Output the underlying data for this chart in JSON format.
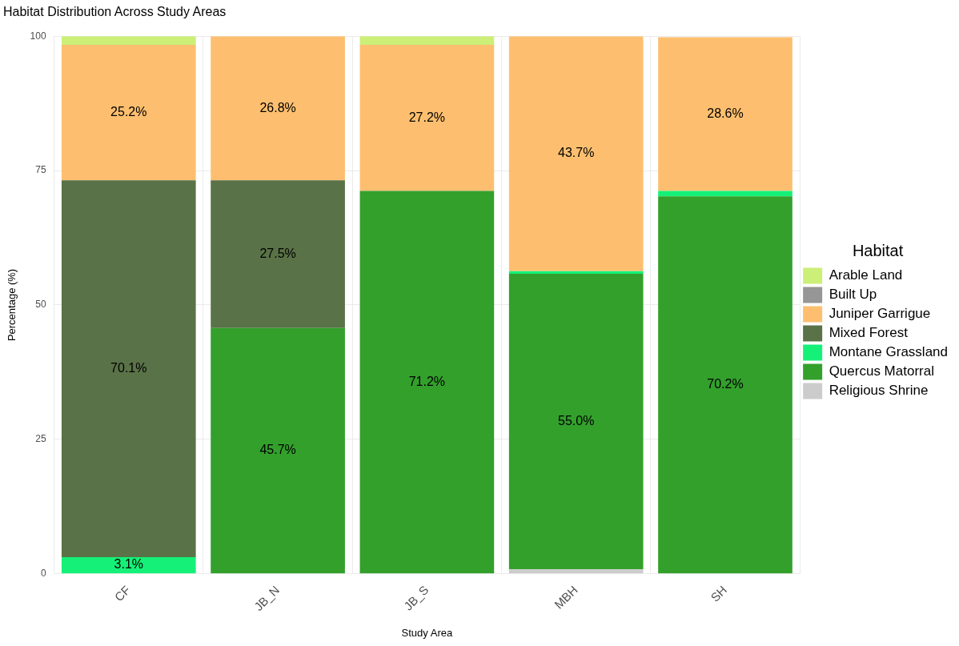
{
  "chart_data": {
    "type": "bar",
    "title": "Habitat Distribution Across Study Areas",
    "xlabel": "Study Area",
    "ylabel": "Percentage (%)",
    "legend_title": "Habitat",
    "categories": [
      "CF",
      "JB_N",
      "JB_S",
      "MBH",
      "SH"
    ],
    "stacked": true,
    "ylim": [
      0,
      100
    ],
    "yticks": [
      0,
      25,
      50,
      75,
      100
    ],
    "grid": true,
    "legend": "right",
    "series": [
      {
        "name": "Religious Shrine",
        "color": "#cccccc",
        "values": [
          0,
          0,
          0,
          0.8,
          null
        ],
        "value_labels": [
          null,
          null,
          null,
          null,
          null
        ]
      },
      {
        "name": "Quercus Matorral",
        "color": "#33a02c",
        "values": [
          0,
          45.7,
          71.2,
          55.0,
          70.2
        ],
        "value_labels": [
          null,
          "45.7%",
          "71.2%",
          "55.0%",
          "70.2%"
        ]
      },
      {
        "name": "Montane Grassland",
        "color": "#15f178",
        "values": [
          3.1,
          0,
          0,
          0.5,
          1.0
        ],
        "value_labels": [
          "3.1%",
          null,
          null,
          null,
          null
        ]
      },
      {
        "name": "Mixed Forest",
        "color": "#5a7247",
        "values": [
          70.1,
          27.5,
          0,
          0,
          0
        ],
        "value_labels": [
          "70.1%",
          "27.5%",
          null,
          null,
          null
        ]
      },
      {
        "name": "Juniper Garrigue",
        "color": "#fdbf6f",
        "values": [
          25.2,
          26.8,
          27.2,
          43.7,
          28.6
        ],
        "value_labels": [
          "25.2%",
          "26.8%",
          "27.2%",
          "43.7%",
          "28.6%"
        ]
      },
      {
        "name": "Built Up",
        "color": "#969696",
        "values": [
          0,
          0,
          0,
          0,
          0
        ],
        "value_labels": [
          null,
          null,
          null,
          null,
          null
        ]
      },
      {
        "name": "Arable Land",
        "color": "#ccef77",
        "values": [
          1.6,
          0,
          1.6,
          0,
          0
        ],
        "value_labels": [
          null,
          null,
          null,
          null,
          null
        ]
      }
    ]
  }
}
